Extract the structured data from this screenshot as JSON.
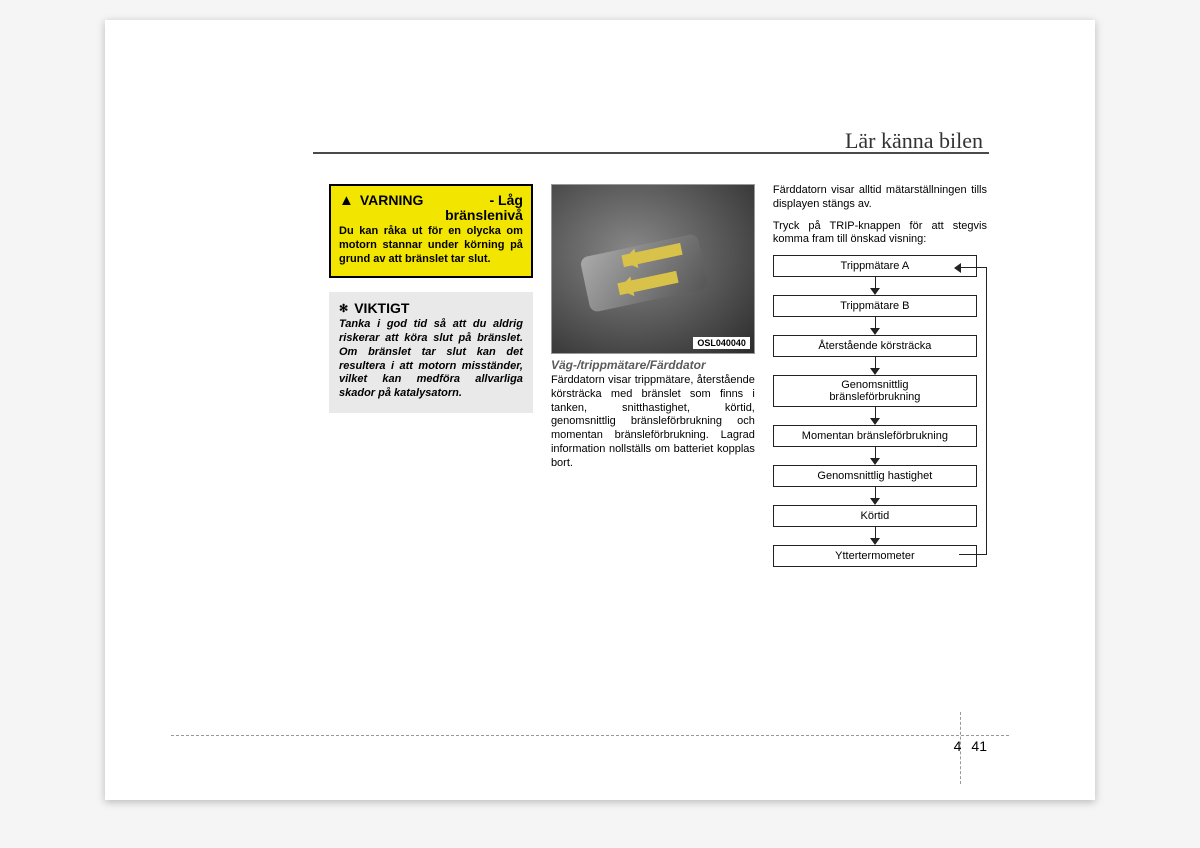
{
  "header": {
    "title": "Lär känna bilen"
  },
  "warning": {
    "heading": "VARNING",
    "subheading": "- Låg\n              bränslenivå",
    "body": "Du kan råka ut för en olycka om motorn stannar under körning på grund av att bränslet tar slut."
  },
  "important": {
    "heading": "VIKTIGT",
    "body": "Tanka i god tid så att du aldrig riskerar att köra slut på bränslet. Om bränslet tar slut kan det resultera i att motorn misständer, vilket kan medföra allvarliga skador på katalysatorn."
  },
  "photo": {
    "code": "OSL040040",
    "caption": "Väg-/trippmätare/Färddator",
    "description": "Färddatorn visar trippmätare, återstående körsträcka med bränslet som finns i tanken, snitthastighet, körtid, genomsnittlig bränsleförbrukning och momentan bränsleförbrukning. Lagrad information nollställs om batteriet kopplas bort."
  },
  "right": {
    "intro1": "Färddatorn visar alltid mätarställningen tills displayen stängs av.",
    "intro2": "Tryck på TRIP-knappen för att stegvis komma fram till önskad visning:"
  },
  "flow": {
    "items": [
      "Trippmätare A",
      "Trippmätare B",
      "Återstående körsträcka",
      "Genomsnittlig\nbränsleförbrukning",
      "Momentan bränsleförbrukning",
      "Genomsnittlig hastighet",
      "Körtid",
      "Yttertermometer"
    ]
  },
  "footer": {
    "chapter": "4",
    "page": "41"
  },
  "colors": {
    "warning_bg": "#f2e500",
    "important_bg": "#e9e9e9",
    "header_line": "#4a4a4a",
    "text": "#222222",
    "caption_text": "#5a5a5a"
  }
}
